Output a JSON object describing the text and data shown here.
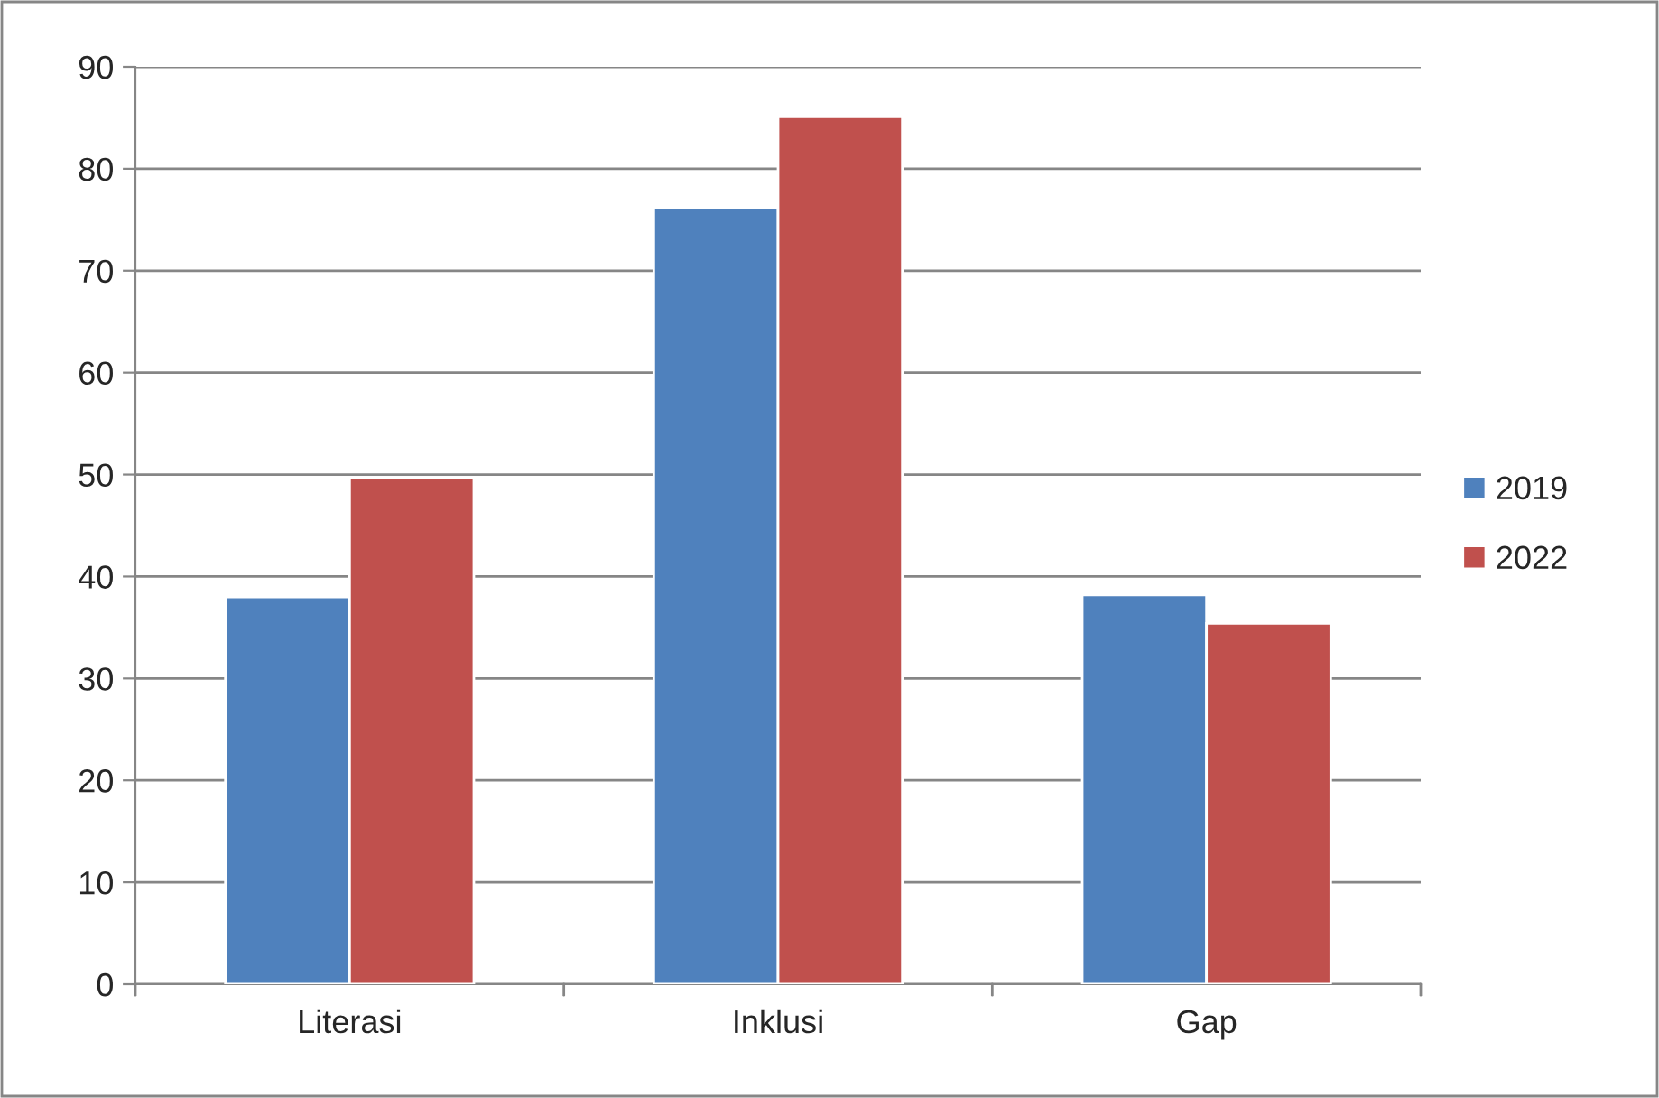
{
  "chart_data": {
    "type": "bar",
    "categories": [
      "Literasi",
      "Inklusi",
      "Gap"
    ],
    "series": [
      {
        "name": "2019",
        "color": "#4f81bd",
        "values": [
          38.0,
          76.2,
          38.2
        ]
      },
      {
        "name": "2022",
        "color": "#c0504d",
        "values": [
          49.7,
          85.1,
          35.4
        ]
      }
    ],
    "ylim": [
      0,
      90
    ],
    "yticks": [
      0,
      10,
      20,
      30,
      40,
      50,
      60,
      70,
      80,
      90
    ],
    "grid": "y",
    "legend": "right"
  }
}
